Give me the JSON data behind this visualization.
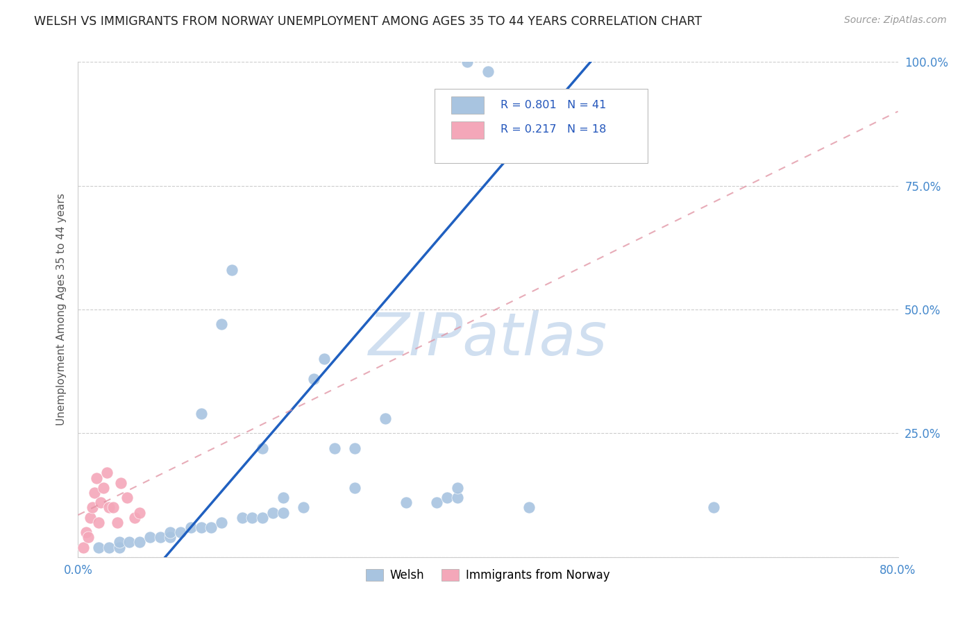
{
  "title": "WELSH VS IMMIGRANTS FROM NORWAY UNEMPLOYMENT AMONG AGES 35 TO 44 YEARS CORRELATION CHART",
  "source": "Source: ZipAtlas.com",
  "ylabel": "Unemployment Among Ages 35 to 44 years",
  "xlim": [
    0.0,
    0.8
  ],
  "ylim": [
    0.0,
    1.0
  ],
  "xticks": [
    0.0,
    0.1,
    0.2,
    0.3,
    0.4,
    0.5,
    0.6,
    0.7,
    0.8
  ],
  "xticklabels": [
    "0.0%",
    "",
    "",
    "",
    "",
    "",
    "",
    "",
    "80.0%"
  ],
  "yticks": [
    0.0,
    0.25,
    0.5,
    0.75,
    1.0
  ],
  "yticklabels": [
    "",
    "25.0%",
    "50.0%",
    "75.0%",
    "100.0%"
  ],
  "welsh_R": 0.801,
  "welsh_N": 41,
  "norway_R": 0.217,
  "norway_N": 18,
  "welsh_color": "#a8c4e0",
  "norway_color": "#f4a7b9",
  "welsh_line_color": "#2060c0",
  "norway_line_color": "#e090a0",
  "background_color": "#ffffff",
  "grid_color": "#cccccc",
  "watermark": "ZIPatlas",
  "watermark_color": "#d0dff0",
  "welsh_line_x0": 0.085,
  "welsh_line_y0": 0.0,
  "welsh_line_x1": 0.5,
  "welsh_line_y1": 1.0,
  "norway_line_x0": 0.0,
  "norway_line_y0": 0.085,
  "norway_line_x1": 0.8,
  "norway_line_y1": 0.9,
  "welsh_x": [
    0.38,
    0.4,
    0.02,
    0.03,
    0.04,
    0.04,
    0.05,
    0.06,
    0.07,
    0.08,
    0.09,
    0.09,
    0.1,
    0.11,
    0.12,
    0.12,
    0.13,
    0.14,
    0.14,
    0.15,
    0.16,
    0.17,
    0.18,
    0.18,
    0.19,
    0.2,
    0.2,
    0.22,
    0.23,
    0.24,
    0.25,
    0.27,
    0.27,
    0.3,
    0.32,
    0.35,
    0.36,
    0.37,
    0.37,
    0.44,
    0.62
  ],
  "welsh_y": [
    1.0,
    0.98,
    0.02,
    0.02,
    0.02,
    0.03,
    0.03,
    0.03,
    0.04,
    0.04,
    0.04,
    0.05,
    0.05,
    0.06,
    0.06,
    0.29,
    0.06,
    0.07,
    0.47,
    0.58,
    0.08,
    0.08,
    0.08,
    0.22,
    0.09,
    0.09,
    0.12,
    0.1,
    0.36,
    0.4,
    0.22,
    0.14,
    0.22,
    0.28,
    0.11,
    0.11,
    0.12,
    0.12,
    0.14,
    0.1,
    0.1
  ],
  "norway_x": [
    0.005,
    0.008,
    0.01,
    0.012,
    0.014,
    0.016,
    0.018,
    0.02,
    0.022,
    0.025,
    0.028,
    0.03,
    0.034,
    0.038,
    0.042,
    0.048,
    0.055,
    0.06
  ],
  "norway_y": [
    0.02,
    0.05,
    0.04,
    0.08,
    0.1,
    0.13,
    0.16,
    0.07,
    0.11,
    0.14,
    0.17,
    0.1,
    0.1,
    0.07,
    0.15,
    0.12,
    0.08,
    0.09
  ]
}
